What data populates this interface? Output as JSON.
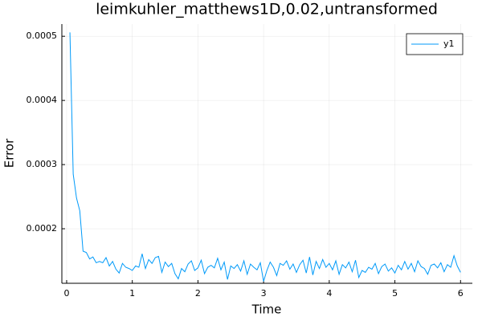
{
  "chart_data": {
    "type": "line",
    "title": "leimkuhler_matthews1D,0.02,untransformed",
    "x_label": "Time",
    "y_label": "Error",
    "x": [
      0.05,
      0.1,
      0.15,
      0.2,
      0.25,
      0.3,
      0.35,
      0.4,
      0.45,
      0.5,
      0.55,
      0.6,
      0.65,
      0.7,
      0.75,
      0.8,
      0.85,
      0.9,
      0.95,
      1.0,
      1.05,
      1.1,
      1.15,
      1.2,
      1.25,
      1.3,
      1.35,
      1.4,
      1.45,
      1.5,
      1.55,
      1.6,
      1.65,
      1.7,
      1.75,
      1.8,
      1.85,
      1.9,
      1.95,
      2.0,
      2.05,
      2.1,
      2.15,
      2.2,
      2.25,
      2.3,
      2.35,
      2.4,
      2.45,
      2.5,
      2.55,
      2.6,
      2.65,
      2.7,
      2.75,
      2.8,
      2.85,
      2.9,
      2.95,
      3.0,
      3.05,
      3.1,
      3.15,
      3.2,
      3.25,
      3.3,
      3.35,
      3.4,
      3.45,
      3.5,
      3.55,
      3.6,
      3.65,
      3.7,
      3.75,
      3.8,
      3.85,
      3.9,
      3.95,
      4.0,
      4.05,
      4.1,
      4.15,
      4.2,
      4.25,
      4.3,
      4.35,
      4.4,
      4.45,
      4.5,
      4.55,
      4.6,
      4.65,
      4.7,
      4.75,
      4.8,
      4.85,
      4.9,
      4.95,
      5.0,
      5.05,
      5.1,
      5.15,
      5.2,
      5.25,
      5.3,
      5.35,
      5.4,
      5.45,
      5.5,
      5.55,
      5.6,
      5.65,
      5.7,
      5.75,
      5.8,
      5.85,
      5.9,
      5.95,
      6.0
    ],
    "series": [
      {
        "name": "y1",
        "color": "#009af9",
        "values": [
          0.000506,
          0.000285,
          0.000248,
          0.000228,
          0.000165,
          0.000163,
          0.000153,
          0.000156,
          0.000147,
          0.000149,
          0.000147,
          0.000155,
          0.000142,
          0.000149,
          0.000137,
          0.000131,
          0.000146,
          0.00014,
          0.000138,
          0.000135,
          0.000142,
          0.00014,
          0.000161,
          0.000138,
          0.000152,
          0.000146,
          0.000155,
          0.000157,
          0.000132,
          0.000148,
          0.000141,
          0.000146,
          0.00013,
          0.000122,
          0.000138,
          0.000133,
          0.000145,
          0.00015,
          0.000135,
          0.000139,
          0.000151,
          0.00013,
          0.00014,
          0.000143,
          0.000139,
          0.000154,
          0.000136,
          0.000148,
          0.000121,
          0.000142,
          0.000138,
          0.000144,
          0.000134,
          0.00015,
          0.000129,
          0.000145,
          0.00014,
          0.000136,
          0.000147,
          0.000118,
          0.000135,
          0.000148,
          0.00014,
          0.000127,
          0.000146,
          0.000143,
          0.00015,
          0.000137,
          0.000145,
          0.000132,
          0.000144,
          0.000151,
          0.000131,
          0.000156,
          0.000128,
          0.000149,
          0.000138,
          0.000152,
          0.00014,
          0.000146,
          0.000136,
          0.00015,
          0.000129,
          0.000144,
          0.000139,
          0.000148,
          0.000133,
          0.000151,
          0.000124,
          0.000135,
          0.000132,
          0.00014,
          0.000137,
          0.000146,
          0.00013,
          0.000141,
          0.000145,
          0.000134,
          0.000139,
          0.000131,
          0.000143,
          0.000136,
          0.000149,
          0.000137,
          0.000146,
          0.000133,
          0.00015,
          0.000141,
          0.000138,
          0.000129,
          0.000143,
          0.000145,
          0.000139,
          0.000147,
          0.000133,
          0.000144,
          0.00014,
          0.000158,
          0.000142,
          0.000132
        ]
      }
    ],
    "xlim": [
      -0.073,
      6.18
    ],
    "ylim": [
      0.000115,
      0.000519
    ],
    "xticks": [
      0,
      1,
      2,
      3,
      4,
      5,
      6
    ],
    "yticks": [
      0.0002,
      0.0003,
      0.0004,
      0.0005
    ],
    "grid": true,
    "legend": "top-right"
  }
}
